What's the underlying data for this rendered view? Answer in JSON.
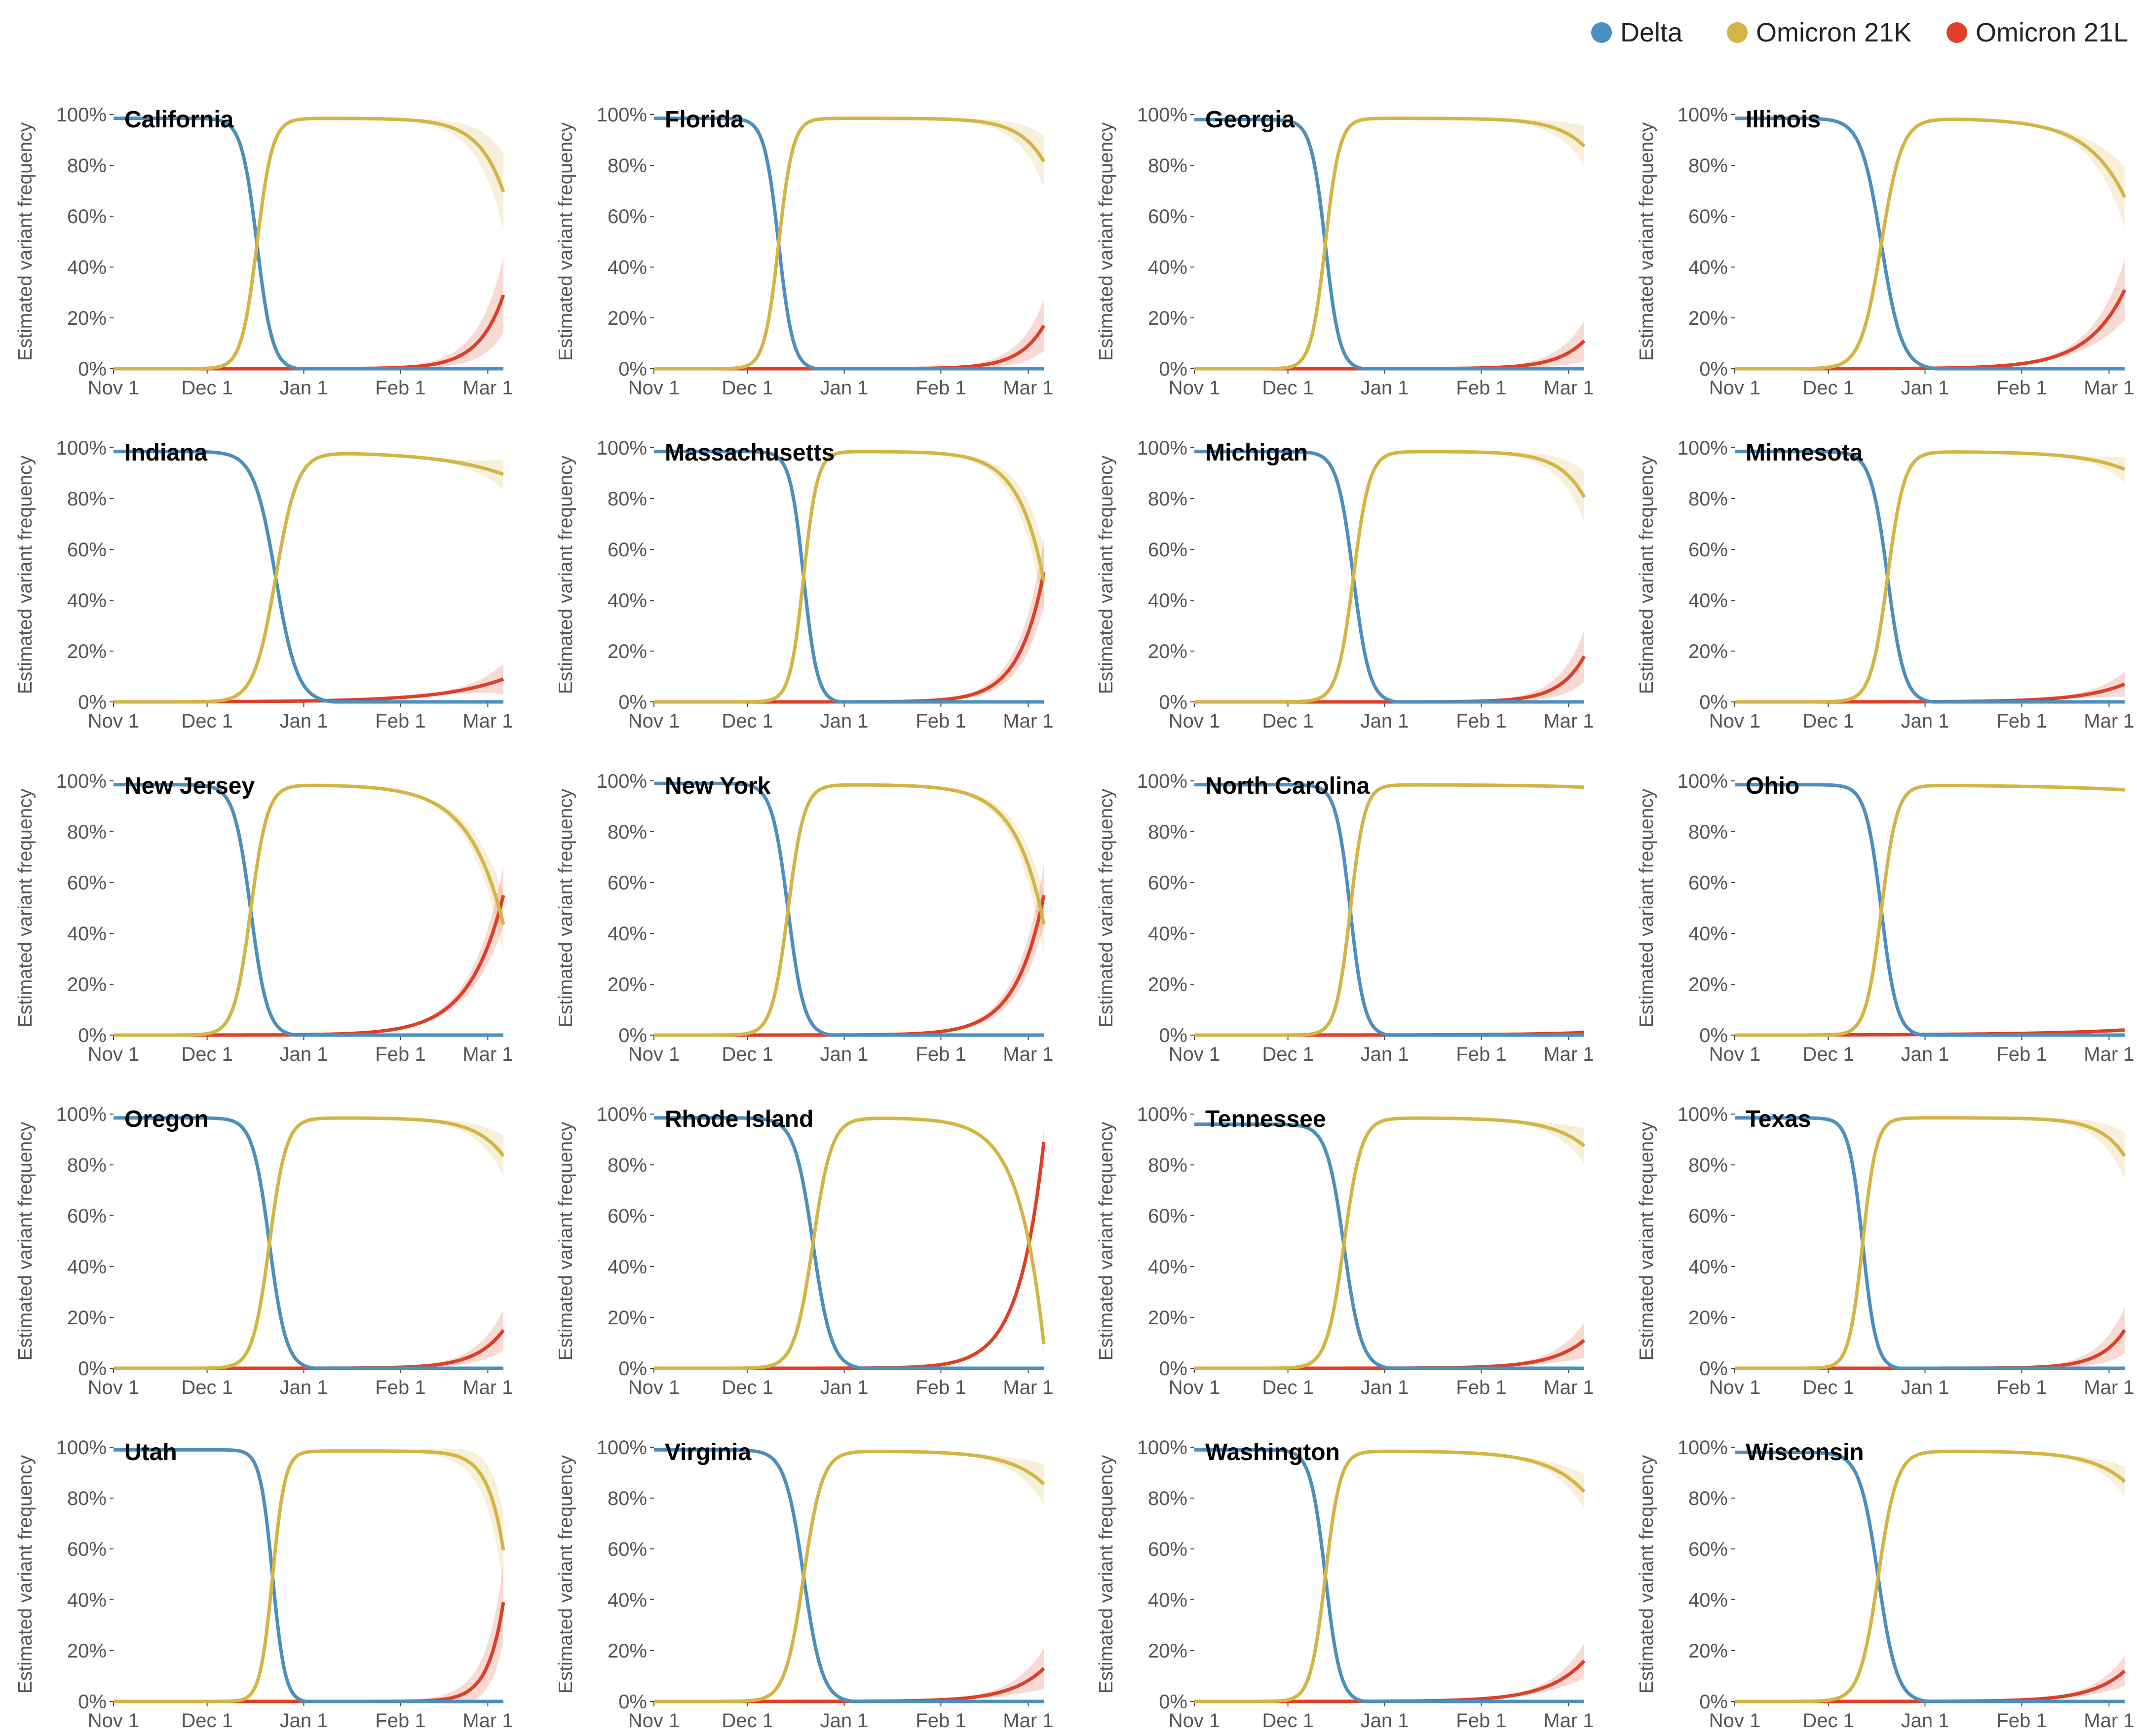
{
  "legend": [
    {
      "name": "Delta",
      "color": "#4b8fbe"
    },
    {
      "name": "Omicron 21K",
      "color": "#d4b444"
    },
    {
      "name": "Omicron 21L",
      "color": "#dd4027"
    }
  ],
  "chart_data": {
    "type": "line",
    "layout": "small-multiples-5x4",
    "ylabel": "Estimated variant frequency",
    "ylim": [
      0,
      1
    ],
    "y_ticks": [
      "0%",
      "20%",
      "40%",
      "60%",
      "80%",
      "100%"
    ],
    "x_unit": "days since Nov 1 2021",
    "xlim": [
      0,
      125
    ],
    "x_ticks": [
      {
        "label": "Nov 1",
        "x": 0
      },
      {
        "label": "Dec 1",
        "x": 30
      },
      {
        "label": "Jan 1",
        "x": 61
      },
      {
        "label": "Feb 1",
        "x": 92
      },
      {
        "label": "Mar 1",
        "x": 120
      }
    ],
    "series_names": [
      "Delta",
      "Omicron 21K",
      "Omicron 21L"
    ],
    "panels": [
      {
        "title": "California",
        "k_mid": 46,
        "k_w": 2.5,
        "delta0": 0.985,
        "l_end": 0.29,
        "l_spread": 8,
        "ci_end": 0.15
      },
      {
        "title": "Florida",
        "k_mid": 40,
        "k_w": 2.3,
        "delta0": 0.985,
        "l_end": 0.17,
        "l_spread": 8,
        "ci_end": 0.1
      },
      {
        "title": "Georgia",
        "k_mid": 42,
        "k_w": 2.3,
        "delta0": 0.98,
        "l_end": 0.11,
        "l_spread": 9,
        "ci_end": 0.08
      },
      {
        "title": "Illinois",
        "k_mid": 47,
        "k_w": 3.3,
        "delta0": 0.985,
        "l_end": 0.31,
        "l_spread": 12,
        "ci_end": 0.12
      },
      {
        "title": "Indiana",
        "k_mid": 52,
        "k_w": 3.5,
        "delta0": 0.985,
        "l_end": 0.09,
        "l_spread": 20,
        "ci_end": 0.06
      },
      {
        "title": "Massachusetts",
        "k_mid": 48,
        "k_w": 2.2,
        "delta0": 0.985,
        "l_end": 0.51,
        "l_spread": 8,
        "ci_end": 0.13
      },
      {
        "title": "Michigan",
        "k_mid": 51,
        "k_w": 2.6,
        "delta0": 0.985,
        "l_end": 0.18,
        "l_spread": 8,
        "ci_end": 0.1
      },
      {
        "title": "Minnesota",
        "k_mid": 49,
        "k_w": 2.7,
        "delta0": 0.985,
        "l_end": 0.07,
        "l_spread": 14,
        "ci_end": 0.05
      },
      {
        "title": "New Jersey",
        "k_mid": 44,
        "k_w": 2.7,
        "delta0": 0.985,
        "l_end": 0.55,
        "l_spread": 11,
        "ci_end": 0.12
      },
      {
        "title": "New York",
        "k_mid": 43,
        "k_w": 2.6,
        "delta0": 0.99,
        "l_end": 0.55,
        "l_spread": 9,
        "ci_end": 0.12
      },
      {
        "title": "North Carolina",
        "k_mid": 50,
        "k_w": 2.3,
        "delta0": 0.985,
        "l_end": 0.01,
        "l_spread": 20,
        "ci_end": 0.01
      },
      {
        "title": "Ohio",
        "k_mid": 47,
        "k_w": 2.5,
        "delta0": 0.985,
        "l_end": 0.02,
        "l_spread": 30,
        "ci_end": 0.01
      },
      {
        "title": "Oregon",
        "k_mid": 50,
        "k_w": 2.7,
        "delta0": 0.985,
        "l_end": 0.15,
        "l_spread": 9,
        "ci_end": 0.08
      },
      {
        "title": "Rhode Island",
        "k_mid": 51,
        "k_w": 3.0,
        "delta0": 0.985,
        "l_end": 0.89,
        "l_spread": 8,
        "ci_end": 0.05
      },
      {
        "title": "Tennessee",
        "k_mid": 48,
        "k_w": 2.8,
        "delta0": 0.96,
        "l_end": 0.11,
        "l_spread": 11,
        "ci_end": 0.07
      },
      {
        "title": "Texas",
        "k_mid": 41,
        "k_w": 2.2,
        "delta0": 0.985,
        "l_end": 0.15,
        "l_spread": 8,
        "ci_end": 0.09
      },
      {
        "title": "Utah",
        "k_mid": 51,
        "k_w": 2.0,
        "delta0": 0.99,
        "l_end": 0.39,
        "l_spread": 5,
        "ci_end": 0.15
      },
      {
        "title": "Virginia",
        "k_mid": 48,
        "k_w": 3.0,
        "delta0": 0.99,
        "l_end": 0.13,
        "l_spread": 11,
        "ci_end": 0.08
      },
      {
        "title": "Washington",
        "k_mid": 42,
        "k_w": 2.4,
        "delta0": 0.99,
        "l_end": 0.16,
        "l_spread": 12,
        "ci_end": 0.07
      },
      {
        "title": "Wisconsin",
        "k_mid": 46,
        "k_w": 3.0,
        "delta0": 0.98,
        "l_end": 0.12,
        "l_spread": 11,
        "ci_end": 0.06
      }
    ]
  }
}
